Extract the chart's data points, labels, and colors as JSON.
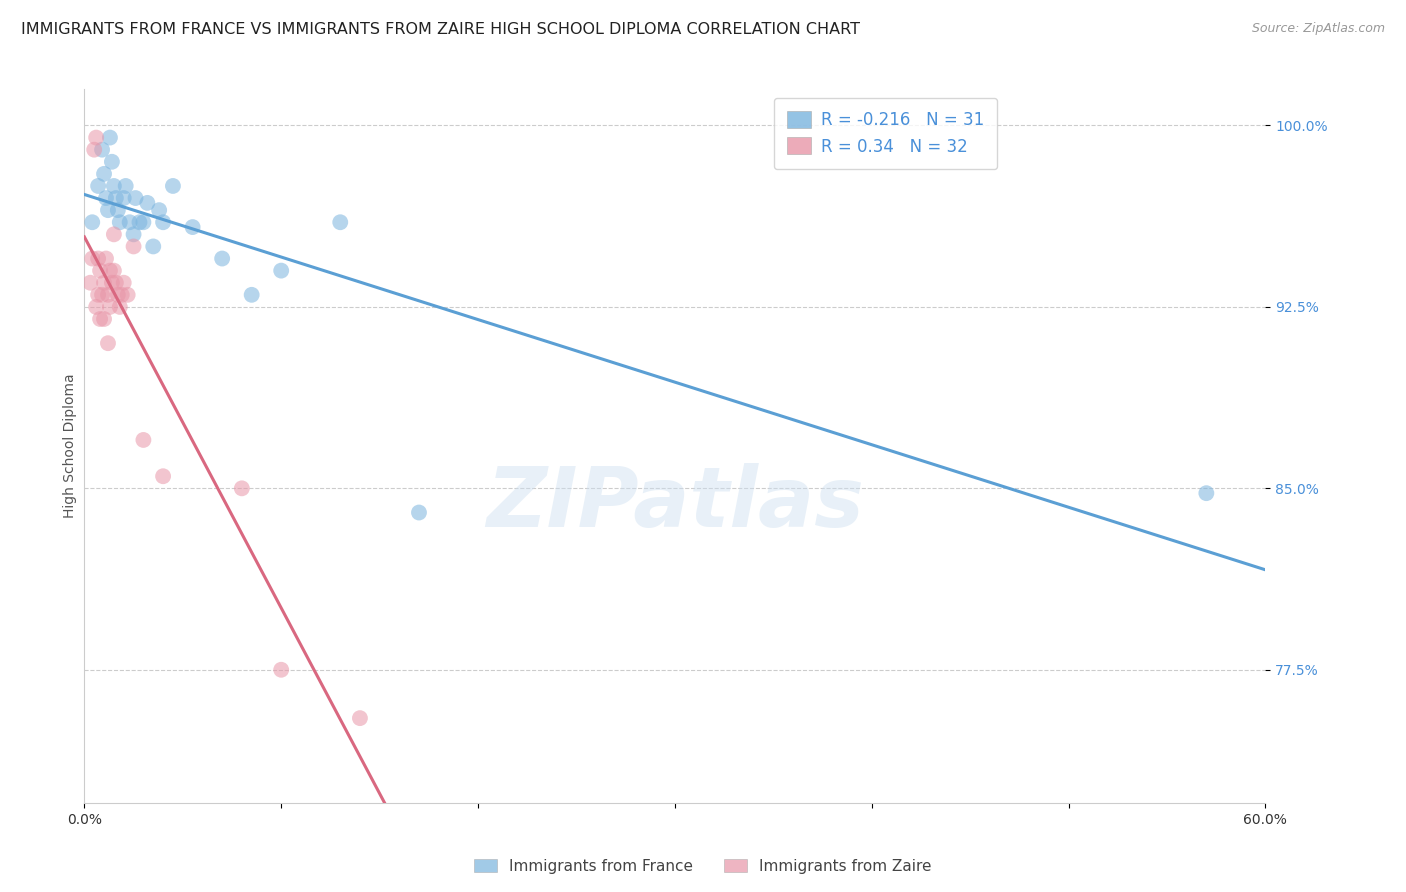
{
  "title": "IMMIGRANTS FROM FRANCE VS IMMIGRANTS FROM ZAIRE HIGH SCHOOL DIPLOMA CORRELATION CHART",
  "source": "Source: ZipAtlas.com",
  "ylabel": "High School Diploma",
  "xlim": [
    0.0,
    0.6
  ],
  "ylim": [
    0.72,
    1.015
  ],
  "yticks": [
    0.775,
    0.85,
    0.925,
    1.0
  ],
  "ytick_labels": [
    "77.5%",
    "85.0%",
    "92.5%",
    "100.0%"
  ],
  "france_R": -0.216,
  "france_N": 31,
  "zaire_R": 0.34,
  "zaire_N": 32,
  "france_color": "#7ab4de",
  "zaire_color": "#e896a8",
  "france_line_color": "#5b9fd4",
  "zaire_line_color": "#d96880",
  "france_scatter_x": [
    0.004,
    0.007,
    0.009,
    0.01,
    0.011,
    0.012,
    0.013,
    0.014,
    0.015,
    0.016,
    0.017,
    0.018,
    0.02,
    0.021,
    0.023,
    0.025,
    0.026,
    0.028,
    0.03,
    0.032,
    0.035,
    0.038,
    0.04,
    0.045,
    0.055,
    0.07,
    0.085,
    0.1,
    0.13,
    0.17,
    0.57
  ],
  "france_scatter_y": [
    0.96,
    0.975,
    0.99,
    0.98,
    0.97,
    0.965,
    0.995,
    0.985,
    0.975,
    0.97,
    0.965,
    0.96,
    0.97,
    0.975,
    0.96,
    0.955,
    0.97,
    0.96,
    0.96,
    0.968,
    0.95,
    0.965,
    0.96,
    0.975,
    0.958,
    0.945,
    0.93,
    0.94,
    0.96,
    0.84,
    0.848
  ],
  "zaire_scatter_x": [
    0.003,
    0.004,
    0.005,
    0.006,
    0.006,
    0.007,
    0.007,
    0.008,
    0.008,
    0.009,
    0.01,
    0.01,
    0.011,
    0.012,
    0.012,
    0.013,
    0.013,
    0.014,
    0.015,
    0.015,
    0.016,
    0.017,
    0.018,
    0.019,
    0.02,
    0.022,
    0.025,
    0.03,
    0.04,
    0.08,
    0.1,
    0.14
  ],
  "zaire_scatter_y": [
    0.935,
    0.945,
    0.99,
    0.995,
    0.925,
    0.945,
    0.93,
    0.94,
    0.92,
    0.93,
    0.935,
    0.92,
    0.945,
    0.93,
    0.91,
    0.94,
    0.925,
    0.935,
    0.955,
    0.94,
    0.935,
    0.93,
    0.925,
    0.93,
    0.935,
    0.93,
    0.95,
    0.87,
    0.855,
    0.85,
    0.775,
    0.755
  ],
  "background_color": "#ffffff",
  "grid_color": "#cccccc",
  "title_fontsize": 11.5,
  "label_fontsize": 10,
  "tick_fontsize": 10,
  "legend_fontsize": 12
}
